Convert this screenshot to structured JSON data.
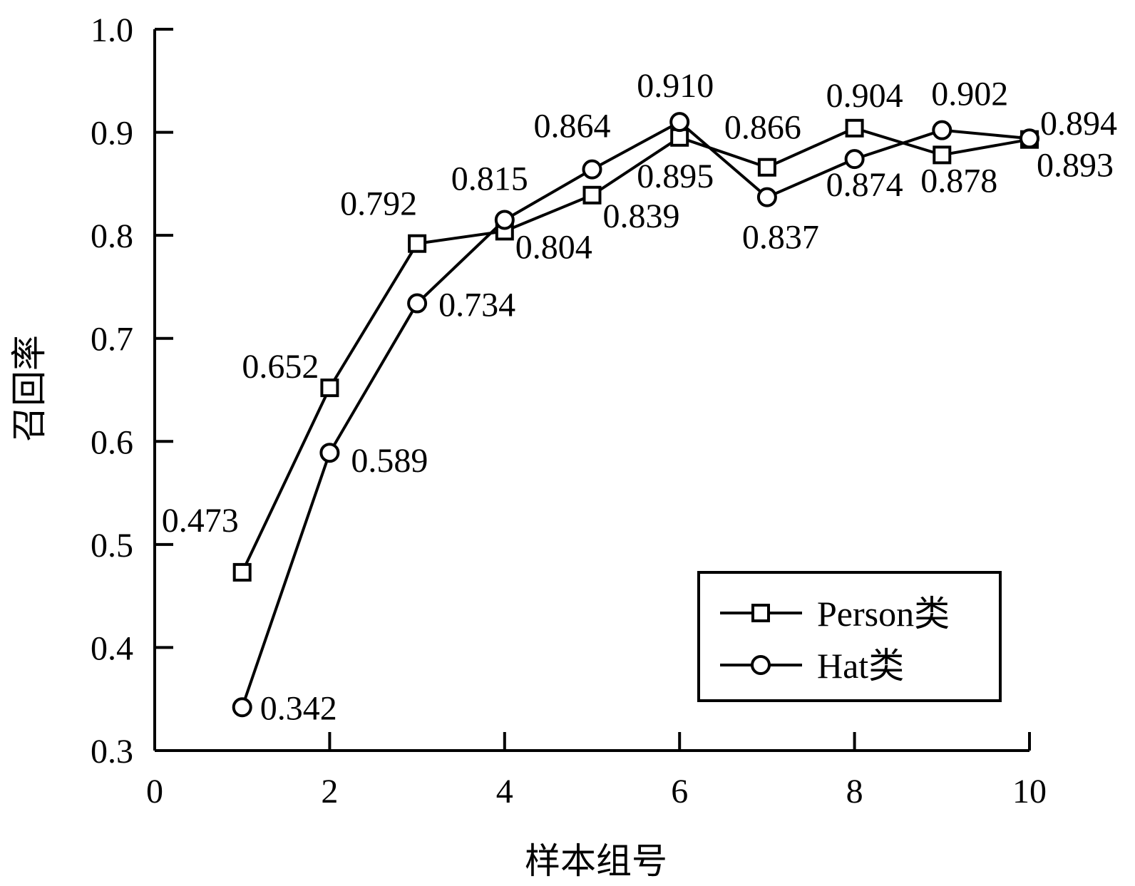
{
  "chart_data": {
    "type": "line",
    "xlabel": "样本组号",
    "ylabel": "召回率",
    "xlim": [
      0,
      10
    ],
    "ylim": [
      0.3,
      1.0
    ],
    "xticks": [
      "0",
      "2",
      "4",
      "6",
      "8",
      "10"
    ],
    "yticks": [
      "0.3",
      "0.4",
      "0.5",
      "0.6",
      "0.7",
      "0.8",
      "0.9",
      "1.0"
    ],
    "x": [
      1,
      2,
      3,
      4,
      5,
      6,
      7,
      8,
      9,
      10
    ],
    "series": [
      {
        "name": "Person类",
        "marker": "square",
        "values": [
          0.473,
          0.652,
          0.792,
          0.804,
          0.839,
          0.895,
          0.866,
          0.904,
          0.878,
          0.893
        ],
        "labels": [
          "0.473",
          "0.652",
          "0.792",
          "0.804",
          "0.839",
          "0.895",
          "0.866",
          "0.904",
          "0.878",
          "0.893"
        ]
      },
      {
        "name": "Hat类",
        "marker": "circle",
        "values": [
          0.342,
          0.589,
          0.734,
          0.815,
          0.864,
          0.91,
          0.837,
          0.874,
          0.902,
          0.894
        ],
        "labels": [
          "0.342",
          "0.589",
          "0.734",
          "0.815",
          "0.864",
          "0.910",
          "0.837",
          "0.874",
          "0.902",
          "0.894"
        ]
      }
    ],
    "legend": {
      "placement": "bottom-right"
    },
    "grid": false,
    "colors": {
      "line": "#000000",
      "marker_fill": "#ffffff"
    }
  }
}
